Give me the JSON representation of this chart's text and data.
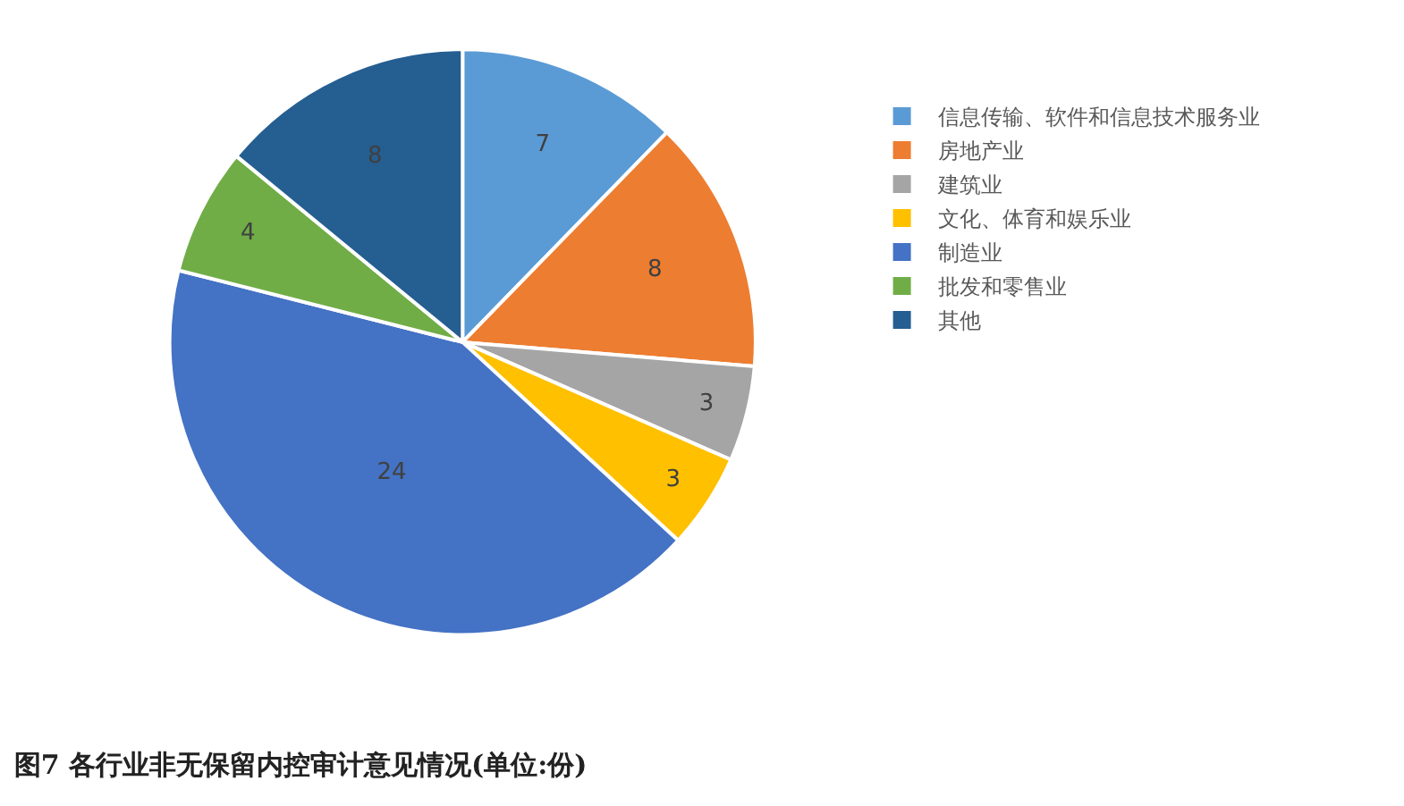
{
  "chart_data": {
    "type": "pie",
    "title": "图7 各行业非无保留内控审计意见情况(单位:份)",
    "categories": [
      "信息传输、软件和信息技术服务业",
      "房地产业",
      "建筑业",
      "文化、体育和娱乐业",
      "制造业",
      "批发和零售业",
      "其他"
    ],
    "values": [
      7,
      8,
      3,
      3,
      24,
      4,
      8
    ],
    "colors": [
      "#5b9bd5",
      "#ed7d31",
      "#a5a5a5",
      "#ffc000",
      "#4472c4",
      "#70ad47",
      "#255e91"
    ],
    "data_labels": true,
    "legend": "right"
  }
}
